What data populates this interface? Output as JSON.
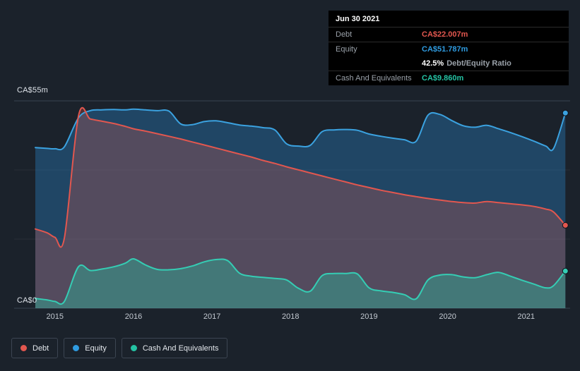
{
  "colors": {
    "background": "#1b222b",
    "grid": "#3a4450",
    "grid_faint": "rgba(255,255,255,0.06)",
    "debt": "#e2574f",
    "equity": "#2f9be0",
    "cash": "#24c3a4",
    "tick_text": "#c3c9d1"
  },
  "tooltip": {
    "date": "Jun 30 2021",
    "debt_label": "Debt",
    "debt_value": "CA$22.007m",
    "equity_label": "Equity",
    "equity_value": "CA$51.787m",
    "ratio_value": "42.5%",
    "ratio_label": "Debt/Equity Ratio",
    "cash_label": "Cash And Equivalents",
    "cash_value": "CA$9.860m"
  },
  "legend": {
    "debt": "Debt",
    "equity": "Equity",
    "cash": "Cash And Equivalents"
  },
  "chart_data": {
    "type": "area",
    "y_axis_top_label": "CA$55m",
    "y_axis_bottom_label": "CA$0",
    "ylim": [
      0,
      55
    ],
    "x_domain": [
      2014.48,
      2021.56
    ],
    "x_tick_values": [
      2015,
      2016,
      2017,
      2018,
      2019,
      2020,
      2021
    ],
    "x_tick_labels": [
      "2015",
      "2016",
      "2017",
      "2018",
      "2019",
      "2020",
      "2021"
    ],
    "x": [
      2014.75,
      2014.9,
      2015.0,
      2015.12,
      2015.3,
      2015.45,
      2015.6,
      2015.75,
      2015.9,
      2016.0,
      2016.15,
      2016.3,
      2016.45,
      2016.6,
      2016.75,
      2016.9,
      2017.05,
      2017.2,
      2017.35,
      2017.5,
      2017.65,
      2017.8,
      2017.95,
      2018.1,
      2018.25,
      2018.4,
      2018.55,
      2018.7,
      2018.85,
      2019.0,
      2019.15,
      2019.3,
      2019.45,
      2019.6,
      2019.75,
      2019.9,
      2020.05,
      2020.2,
      2020.35,
      2020.5,
      2020.65,
      2020.8,
      2020.95,
      2021.1,
      2021.25,
      2021.35,
      2021.5
    ],
    "series": [
      {
        "key": "equity",
        "name": "Equity",
        "line": "#3ba2e0",
        "fill": "rgba(43,130,197,0.38)",
        "values": [
          42.6,
          42.4,
          42.3,
          42.8,
          50.5,
          52.4,
          52.6,
          52.7,
          52.6,
          52.8,
          52.6,
          52.4,
          52.3,
          48.9,
          48.7,
          49.5,
          49.7,
          49.2,
          48.6,
          48.3,
          47.9,
          47.3,
          43.6,
          43.0,
          43.2,
          46.8,
          47.3,
          47.4,
          47.2,
          46.2,
          45.6,
          45.1,
          44.7,
          44.3,
          51.2,
          51.4,
          49.8,
          48.4,
          48.0,
          48.5,
          47.6,
          46.6,
          45.5,
          44.3,
          43.0,
          42.4,
          51.787
        ]
      },
      {
        "key": "debt",
        "name": "Debt",
        "line": "#e2574f",
        "fill": "rgba(226,87,79,0.27)",
        "values": [
          21.0,
          20.0,
          18.8,
          18.6,
          51.0,
          50.2,
          49.6,
          49.0,
          48.2,
          47.6,
          47.0,
          46.3,
          45.6,
          44.9,
          44.1,
          43.3,
          42.5,
          41.7,
          40.9,
          40.1,
          39.2,
          38.4,
          37.5,
          36.7,
          35.9,
          35.1,
          34.3,
          33.5,
          32.7,
          32.0,
          31.3,
          30.7,
          30.1,
          29.6,
          29.1,
          28.7,
          28.3,
          28.0,
          27.9,
          28.3,
          28.0,
          27.7,
          27.4,
          27.0,
          26.3,
          25.5,
          22.007
        ]
      },
      {
        "key": "cash",
        "name": "Cash And Equivalents",
        "line": "#35cdb4",
        "fill": "rgba(42,187,160,0.40)",
        "values": [
          2.6,
          2.2,
          1.8,
          1.8,
          11.0,
          10.0,
          10.4,
          11.0,
          12.0,
          13.1,
          11.5,
          10.3,
          10.2,
          10.5,
          11.2,
          12.3,
          12.9,
          12.6,
          9.3,
          8.5,
          8.2,
          7.9,
          7.5,
          5.3,
          4.5,
          8.6,
          9.2,
          9.2,
          9.1,
          5.4,
          4.6,
          4.2,
          3.6,
          2.5,
          7.5,
          8.8,
          8.9,
          8.3,
          8.1,
          8.9,
          9.5,
          8.5,
          7.4,
          6.4,
          5.4,
          6.0,
          9.86
        ]
      }
    ]
  }
}
